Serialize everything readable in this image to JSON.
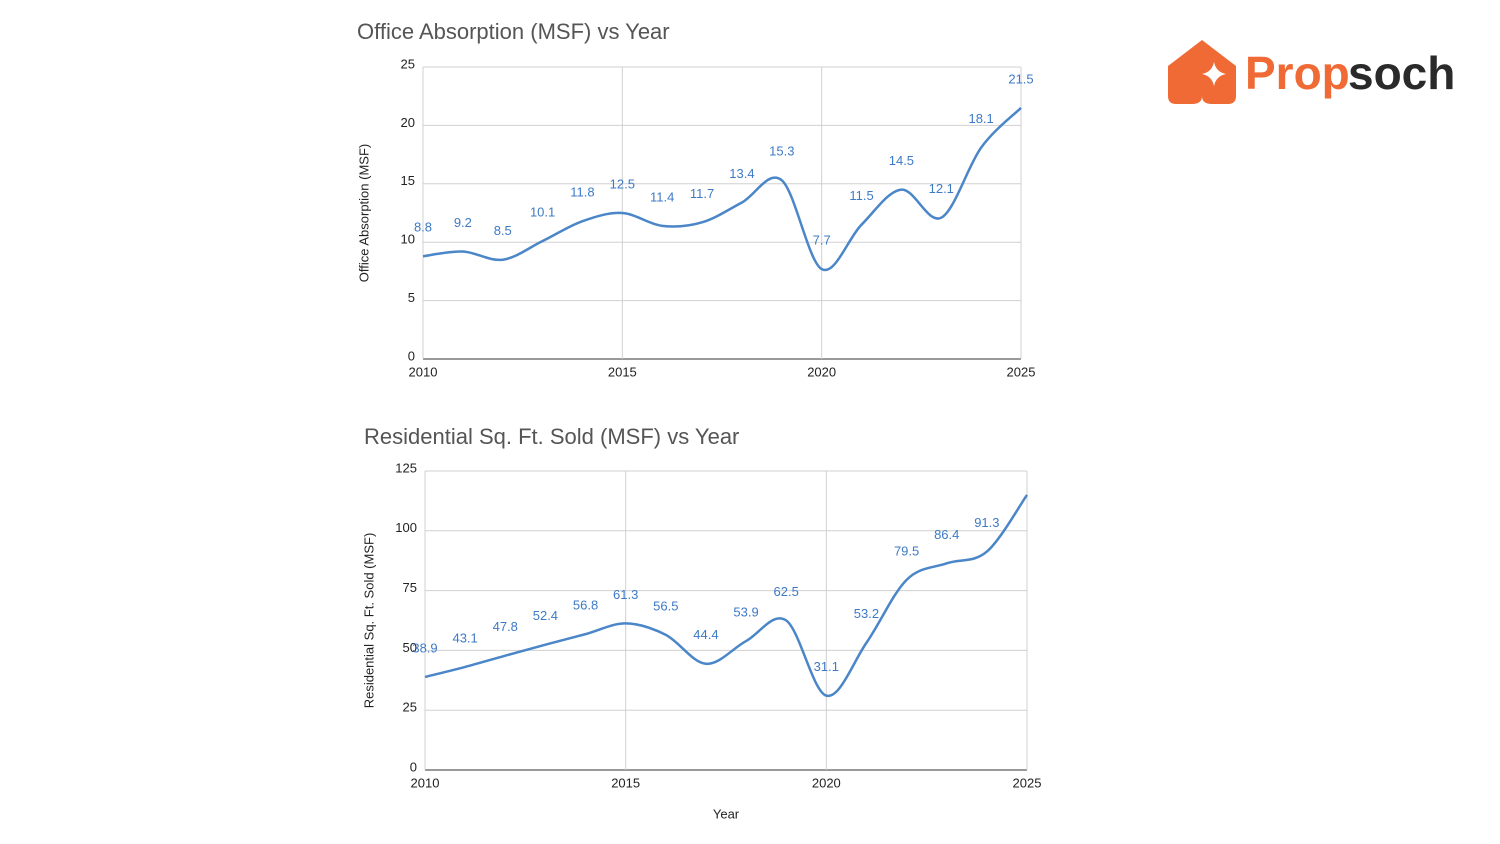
{
  "logo": [
    "Prop",
    "soch"
  ],
  "chart_data": [
    {
      "type": "line",
      "title": "Office Absorption (MSF) vs Year",
      "y_label": "Office Absorption (MSF)",
      "x": [
        2010,
        2011,
        2012,
        2013,
        2014,
        2015,
        2016,
        2017,
        2018,
        2019,
        2020,
        2021,
        2022,
        2023,
        2024,
        2025
      ],
      "series": [
        {
          "name": "Office Absorption (MSF)",
          "color": "#4a86c8",
          "values": [
            8.8,
            9.2,
            8.5,
            10.1,
            11.8,
            12.5,
            11.4,
            11.7,
            13.4,
            15.3,
            7.7,
            11.5,
            14.5,
            12.1,
            18.1,
            21.5
          ]
        }
      ],
      "xlim": [
        2010,
        2025
      ],
      "xticks": [
        2010,
        2015,
        2020,
        2025
      ],
      "ylim": [
        0,
        25
      ],
      "yticks": [
        0,
        5,
        10,
        15,
        20,
        25
      ],
      "grid": true
    },
    {
      "type": "line",
      "title": "Residential Sq. Ft. Sold (MSF) vs Year",
      "y_label": "Residential Sq. Ft. Sold (MSF)",
      "x_label": "Year",
      "x": [
        2010,
        2011,
        2012,
        2013,
        2014,
        2015,
        2016,
        2017,
        2018,
        2019,
        2020,
        2021,
        2022,
        2023,
        2024,
        2025
      ],
      "series": [
        {
          "name": "Residential Sq. Ft. Sold (MSF)",
          "color": "#4a86c8",
          "values": [
            38.9,
            43.1,
            47.8,
            52.4,
            56.8,
            61.3,
            56.5,
            44.4,
            53.9,
            62.5,
            31.1,
            53.2,
            79.5,
            86.4,
            91.3,
            115
          ],
          "value_labels": [
            "38.9",
            "43.1",
            "47.8",
            "52.4",
            "56.8",
            "61.3",
            "56.5",
            "44.4",
            "53.9",
            "62.5",
            "31.1",
            "53.2",
            "79.5",
            "86.4",
            "91.3",
            null
          ]
        }
      ],
      "xlim": [
        2010,
        2025
      ],
      "xticks": [
        2010,
        2015,
        2020,
        2025
      ],
      "ylim": [
        0,
        125
      ],
      "yticks": [
        0,
        25,
        50,
        75,
        100,
        125
      ],
      "grid": true
    }
  ]
}
